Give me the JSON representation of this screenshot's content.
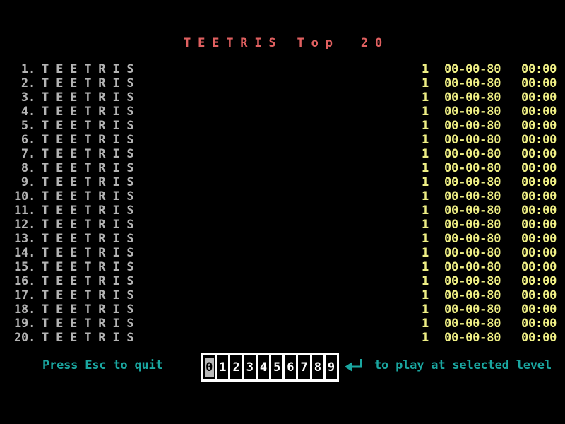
{
  "title": "T E E T R I S   T o p    2 0",
  "scoreboard": {
    "rows": [
      {
        "rank": "1.",
        "name": "T E E T R I S",
        "level": "1",
        "date": "00-00-80",
        "time": "00:00"
      },
      {
        "rank": "2.",
        "name": "T E E T R I S",
        "level": "1",
        "date": "00-00-80",
        "time": "00:00"
      },
      {
        "rank": "3.",
        "name": "T E E T R I S",
        "level": "1",
        "date": "00-00-80",
        "time": "00:00"
      },
      {
        "rank": "4.",
        "name": "T E E T R I S",
        "level": "1",
        "date": "00-00-80",
        "time": "00:00"
      },
      {
        "rank": "5.",
        "name": "T E E T R I S",
        "level": "1",
        "date": "00-00-80",
        "time": "00:00"
      },
      {
        "rank": "6.",
        "name": "T E E T R I S",
        "level": "1",
        "date": "00-00-80",
        "time": "00:00"
      },
      {
        "rank": "7.",
        "name": "T E E T R I S",
        "level": "1",
        "date": "00-00-80",
        "time": "00:00"
      },
      {
        "rank": "8.",
        "name": "T E E T R I S",
        "level": "1",
        "date": "00-00-80",
        "time": "00:00"
      },
      {
        "rank": "9.",
        "name": "T E E T R I S",
        "level": "1",
        "date": "00-00-80",
        "time": "00:00"
      },
      {
        "rank": "10.",
        "name": "T E E T R I S",
        "level": "1",
        "date": "00-00-80",
        "time": "00:00"
      },
      {
        "rank": "11.",
        "name": "T E E T R I S",
        "level": "1",
        "date": "00-00-80",
        "time": "00:00"
      },
      {
        "rank": "12.",
        "name": "T E E T R I S",
        "level": "1",
        "date": "00-00-80",
        "time": "00:00"
      },
      {
        "rank": "13.",
        "name": "T E E T R I S",
        "level": "1",
        "date": "00-00-80",
        "time": "00:00"
      },
      {
        "rank": "14.",
        "name": "T E E T R I S",
        "level": "1",
        "date": "00-00-80",
        "time": "00:00"
      },
      {
        "rank": "15.",
        "name": "T E E T R I S",
        "level": "1",
        "date": "00-00-80",
        "time": "00:00"
      },
      {
        "rank": "16.",
        "name": "T E E T R I S",
        "level": "1",
        "date": "00-00-80",
        "time": "00:00"
      },
      {
        "rank": "17.",
        "name": "T E E T R I S",
        "level": "1",
        "date": "00-00-80",
        "time": "00:00"
      },
      {
        "rank": "18.",
        "name": "T E E T R I S",
        "level": "1",
        "date": "00-00-80",
        "time": "00:00"
      },
      {
        "rank": "19.",
        "name": "T E E T R I S",
        "level": "1",
        "date": "00-00-80",
        "time": "00:00"
      },
      {
        "rank": "20.",
        "name": "T E E T R I S",
        "level": "1",
        "date": "00-00-80",
        "time": "00:00"
      }
    ]
  },
  "footer": {
    "quit_hint": "Press Esc to quit",
    "play_hint": "to play at selected level",
    "levels": [
      "0",
      "1",
      "2",
      "3",
      "4",
      "5",
      "6",
      "7",
      "8",
      "9"
    ],
    "selected_level": "0",
    "enter_icon": "enter-arrow"
  },
  "colors": {
    "background": "#000000",
    "title": "#e06060",
    "entry_text": "#b4b4b4",
    "score_text": "#efef85",
    "hint_text": "#1aa7a1",
    "selector_border": "#ffffff",
    "selector_digit": "#ffffff",
    "selected_bg": "#b8b8b8"
  }
}
